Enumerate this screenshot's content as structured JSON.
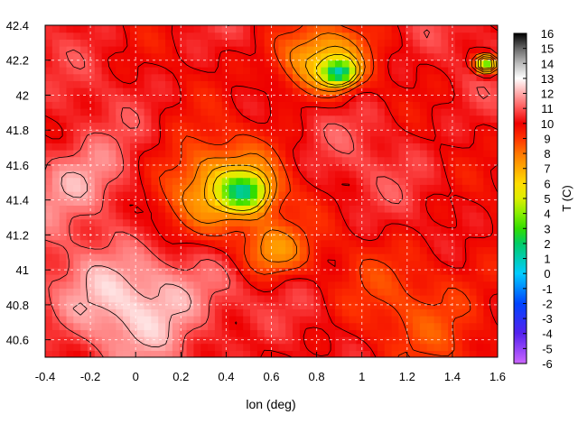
{
  "chart_data": {
    "type": "heatmap",
    "title": "",
    "xlabel": "lon (deg)",
    "ylabel": "",
    "colorbar_label": "T (C)",
    "xlim": [
      -0.4,
      1.6
    ],
    "ylim": [
      40.5,
      42.4
    ],
    "xticks": [
      "-0.4",
      "-0.2",
      "0",
      "0.2",
      "0.4",
      "0.6",
      "0.8",
      "1",
      "1.2",
      "1.4",
      "1.6"
    ],
    "yticks": [
      "40.6",
      "40.8",
      "41",
      "41.2",
      "41.4",
      "41.6",
      "41.8",
      "42",
      "42.2",
      "42.4"
    ],
    "colorbar_range": [
      -6,
      16
    ],
    "colorbar_ticks": [
      "16",
      "15",
      "14",
      "13",
      "12",
      "11",
      "10",
      "9",
      "8",
      "7",
      "6",
      "5",
      "4",
      "3",
      "2",
      "1",
      "0",
      "-1",
      "-2",
      "-3",
      "-4",
      "-5",
      "-6"
    ],
    "grid": true,
    "contours": true,
    "palette": [
      [
        -6,
        "#cc66ff"
      ],
      [
        -4,
        "#5522ee"
      ],
      [
        -2,
        "#0044ff"
      ],
      [
        0,
        "#00ccff"
      ],
      [
        2,
        "#00cc66"
      ],
      [
        3,
        "#33dd00"
      ],
      [
        4,
        "#88ee00"
      ],
      [
        5,
        "#ddee00"
      ],
      [
        6,
        "#ffdd00"
      ],
      [
        7,
        "#ffaa00"
      ],
      [
        8,
        "#ff7700"
      ],
      [
        9,
        "#ff3300"
      ],
      [
        10,
        "#ee0000"
      ],
      [
        11,
        "#ff5555"
      ],
      [
        12,
        "#ffaaaa"
      ],
      [
        13,
        "#ffffff"
      ],
      [
        14,
        "#bbbbbb"
      ],
      [
        15,
        "#666666"
      ],
      [
        16,
        "#000000"
      ]
    ],
    "temperature_features": [
      {
        "lon": 0.05,
        "lat": 40.85,
        "t": 12.6,
        "r": 0.35
      },
      {
        "lon": -0.25,
        "lat": 41.5,
        "t": 12.2,
        "r": 0.25
      },
      {
        "lon": 0.35,
        "lat": 41.45,
        "t": 6.5,
        "r": 0.28
      },
      {
        "lon": 0.48,
        "lat": 41.45,
        "t": 4.5,
        "r": 0.1
      },
      {
        "lon": 0.9,
        "lat": 42.13,
        "t": 3.5,
        "r": 0.07
      },
      {
        "lon": 1.55,
        "lat": 42.18,
        "t": 3.5,
        "r": 0.05
      },
      {
        "lon": 0.8,
        "lat": 42.2,
        "t": 6.5,
        "r": 0.2
      },
      {
        "lon": 0.6,
        "lat": 41.1,
        "t": 7.5,
        "r": 0.15
      },
      {
        "lon": 1.3,
        "lat": 40.8,
        "t": 9.0,
        "r": 0.45
      },
      {
        "lon": 1.0,
        "lat": 41.6,
        "t": 10.5,
        "r": 0.4
      }
    ]
  }
}
